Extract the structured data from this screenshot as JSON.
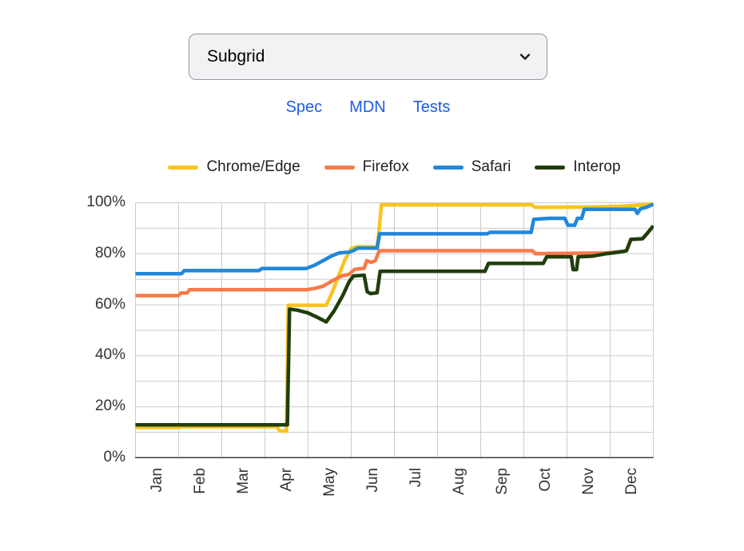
{
  "dropdown": {
    "value": "Subgrid"
  },
  "links": [
    {
      "label": "Spec"
    },
    {
      "label": "MDN"
    },
    {
      "label": "Tests"
    }
  ],
  "colors": {
    "link": "#1C5BEB",
    "grid": "#CCCCCC",
    "axis": "#3D3D3D",
    "tick_text": "#333333",
    "legend_text": "#202124",
    "dropdown_border": "#97979E",
    "dropdown_bg": "#F2F2F4",
    "chevron": "#1C1C1E"
  },
  "chart_data": {
    "type": "line",
    "title": "",
    "xlabel": "",
    "ylabel": "",
    "x_axis": {
      "labels": [
        "Jan",
        "Feb",
        "Mar",
        "Apr",
        "May",
        "Jun",
        "Jul",
        "Aug",
        "Sep",
        "Oct",
        "Nov",
        "Dec"
      ],
      "range": [
        0,
        12
      ]
    },
    "y_axis": {
      "tick_values": [
        0,
        20,
        40,
        60,
        80,
        100
      ],
      "tick_labels": [
        "0%",
        "20%",
        "40%",
        "60%",
        "80%",
        "100%"
      ],
      "range": [
        0,
        100
      ],
      "minor_grid_step_percent": 10
    },
    "grid": true,
    "legend_position": "top",
    "series": [
      {
        "name": "Chrome/Edge",
        "color": "#FAC41E",
        "points": [
          [
            0,
            11.9
          ],
          [
            1.0,
            11.9
          ],
          [
            1.05,
            12.2
          ],
          [
            3.28,
            12.2
          ],
          [
            3.34,
            10.5
          ],
          [
            3.5,
            10.5
          ],
          [
            3.54,
            59.8
          ],
          [
            4.42,
            59.8
          ],
          [
            4.55,
            64.5
          ],
          [
            4.7,
            71
          ],
          [
            4.85,
            77.5
          ],
          [
            5.0,
            82
          ],
          [
            5.12,
            82.7
          ],
          [
            5.6,
            82.7
          ],
          [
            5.65,
            90
          ],
          [
            5.7,
            99.2
          ],
          [
            9.18,
            99.2
          ],
          [
            9.26,
            98.2
          ],
          [
            10.5,
            98.3
          ],
          [
            11.2,
            98.6
          ],
          [
            11.8,
            99.2
          ],
          [
            12,
            99.7
          ]
        ]
      },
      {
        "name": "Firefox",
        "color": "#F87A4A",
        "points": [
          [
            0,
            63.6
          ],
          [
            1.0,
            63.6
          ],
          [
            1.05,
            64.6
          ],
          [
            1.2,
            64.6
          ],
          [
            1.25,
            65.9
          ],
          [
            3.95,
            65.9
          ],
          [
            4.15,
            66.4
          ],
          [
            4.35,
            67.3
          ],
          [
            4.5,
            68.8
          ],
          [
            4.65,
            70.2
          ],
          [
            4.8,
            71.4
          ],
          [
            4.95,
            71.9
          ],
          [
            5.08,
            73.9
          ],
          [
            5.3,
            74.3
          ],
          [
            5.36,
            77.3
          ],
          [
            5.46,
            76.6
          ],
          [
            5.56,
            77.3
          ],
          [
            5.65,
            81.2
          ],
          [
            9.2,
            81.2
          ],
          [
            9.27,
            80
          ],
          [
            10.9,
            80.3
          ],
          [
            11.1,
            80.6
          ],
          [
            11.3,
            80.9
          ],
          [
            11.38,
            81.2
          ],
          [
            11.48,
            85.6
          ],
          [
            11.75,
            85.9
          ],
          [
            11.85,
            87.8
          ],
          [
            12,
            90.9
          ]
        ]
      },
      {
        "name": "Safari",
        "color": "#2287D9",
        "points": [
          [
            0,
            72.2
          ],
          [
            1.07,
            72.2
          ],
          [
            1.13,
            73.4
          ],
          [
            2.86,
            73.4
          ],
          [
            2.93,
            74.2
          ],
          [
            3.95,
            74.2
          ],
          [
            4.15,
            75.5
          ],
          [
            4.35,
            77.3
          ],
          [
            4.55,
            79.2
          ],
          [
            4.72,
            80.3
          ],
          [
            4.95,
            80.6
          ],
          [
            5.06,
            81.3
          ],
          [
            5.15,
            82.2
          ],
          [
            5.6,
            82.2
          ],
          [
            5.66,
            87.8
          ],
          [
            8.15,
            87.8
          ],
          [
            8.22,
            88.4
          ],
          [
            9.17,
            88.4
          ],
          [
            9.23,
            93.5
          ],
          [
            9.6,
            93.9
          ],
          [
            9.95,
            93.9
          ],
          [
            10.02,
            91.2
          ],
          [
            10.18,
            91.2
          ],
          [
            10.24,
            93.9
          ],
          [
            10.34,
            93.9
          ],
          [
            10.4,
            97.4
          ],
          [
            11.58,
            97.4
          ],
          [
            11.63,
            95.8
          ],
          [
            11.7,
            97.6
          ],
          [
            11.85,
            98.3
          ],
          [
            12,
            99.4
          ]
        ]
      },
      {
        "name": "Interop",
        "color": "#213D0D",
        "points": [
          [
            0,
            12.9
          ],
          [
            3.52,
            12.9
          ],
          [
            3.57,
            58.3
          ],
          [
            3.75,
            57.9
          ],
          [
            4.0,
            56.8
          ],
          [
            4.25,
            54.8
          ],
          [
            4.42,
            53.3
          ],
          [
            4.6,
            57.5
          ],
          [
            4.8,
            63.5
          ],
          [
            4.95,
            69
          ],
          [
            5.05,
            71.3
          ],
          [
            5.3,
            71.6
          ],
          [
            5.37,
            65.1
          ],
          [
            5.45,
            64.4
          ],
          [
            5.6,
            64.7
          ],
          [
            5.67,
            73.1
          ],
          [
            8.1,
            73.1
          ],
          [
            8.18,
            76.2
          ],
          [
            9.45,
            76.2
          ],
          [
            9.53,
            78.8
          ],
          [
            10.1,
            78.8
          ],
          [
            10.14,
            73.8
          ],
          [
            10.22,
            73.8
          ],
          [
            10.26,
            78.8
          ],
          [
            10.6,
            79.1
          ],
          [
            10.9,
            80
          ],
          [
            11.1,
            80.4
          ],
          [
            11.3,
            80.9
          ],
          [
            11.38,
            81.2
          ],
          [
            11.48,
            85.6
          ],
          [
            11.75,
            85.9
          ],
          [
            11.85,
            87.8
          ],
          [
            12,
            90.9
          ]
        ]
      }
    ]
  }
}
